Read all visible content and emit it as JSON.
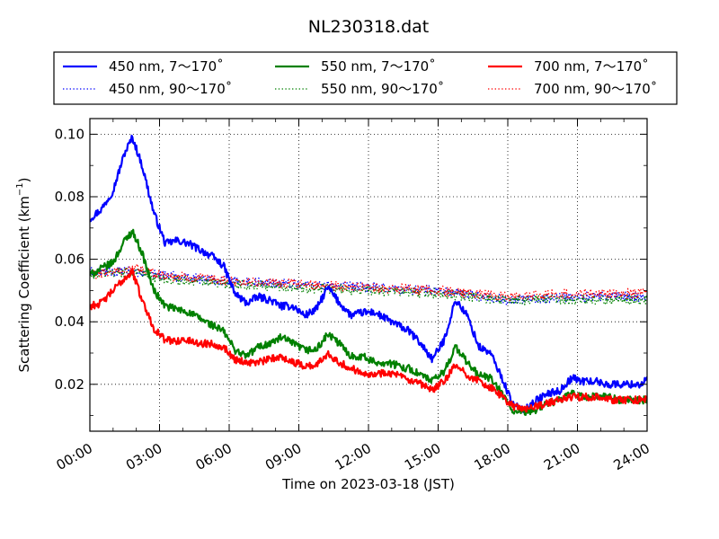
{
  "chart_data": {
    "type": "line",
    "title": "NL230318.dat",
    "xlabel": "Time on 2023-03-18 (JST)",
    "ylabel_main": "Scattering Coefficient (km",
    "ylabel_sup": "−1",
    "ylabel_close": ")",
    "xlim": [
      "00:00",
      "24:00"
    ],
    "ylim": [
      0.005,
      0.105
    ],
    "x_ticks": [
      "00:00",
      "03:00",
      "06:00",
      "09:00",
      "12:00",
      "15:00",
      "18:00",
      "21:00",
      "24:00"
    ],
    "y_ticks": [
      "0.02",
      "0.04",
      "0.06",
      "0.08",
      "0.10"
    ],
    "grid": true,
    "legend_position": "above plot, three columns",
    "series": [
      {
        "name": "450 nm, 7～170˚",
        "color": "#0000ff",
        "style": "solid",
        "x": [
          "00:00",
          "00:30",
          "01:00",
          "01:30",
          "01:50",
          "02:15",
          "02:45",
          "03:15",
          "03:45",
          "04:15",
          "04:45",
          "05:15",
          "05:45",
          "06:15",
          "06:45",
          "07:15",
          "07:45",
          "08:15",
          "08:45",
          "09:15",
          "09:45",
          "10:15",
          "10:45",
          "11:15",
          "11:45",
          "12:15",
          "12:45",
          "13:15",
          "13:45",
          "14:15",
          "14:45",
          "15:15",
          "15:45",
          "16:15",
          "16:45",
          "17:15",
          "17:45",
          "18:15",
          "18:45",
          "19:15",
          "19:45",
          "20:15",
          "20:45",
          "21:15",
          "21:45",
          "22:15",
          "22:45",
          "23:15",
          "23:45",
          "24:00"
        ],
        "y": [
          0.073,
          0.076,
          0.082,
          0.094,
          0.099,
          0.09,
          0.075,
          0.065,
          0.066,
          0.065,
          0.063,
          0.061,
          0.058,
          0.049,
          0.046,
          0.048,
          0.047,
          0.045,
          0.045,
          0.042,
          0.044,
          0.051,
          0.046,
          0.042,
          0.043,
          0.043,
          0.041,
          0.039,
          0.037,
          0.033,
          0.028,
          0.034,
          0.047,
          0.042,
          0.032,
          0.03,
          0.022,
          0.013,
          0.012,
          0.015,
          0.017,
          0.018,
          0.022,
          0.021,
          0.021,
          0.02,
          0.02,
          0.02,
          0.02,
          0.022
        ]
      },
      {
        "name": "450 nm, 90～170˚",
        "color": "#0000ff",
        "style": "dotted",
        "x": [
          "00:00",
          "01:00",
          "02:00",
          "03:00",
          "06:00",
          "09:00",
          "12:00",
          "15:00",
          "18:00",
          "21:00",
          "24:00"
        ],
        "y": [
          0.056,
          0.056,
          0.056,
          0.055,
          0.053,
          0.052,
          0.051,
          0.05,
          0.047,
          0.048,
          0.048
        ]
      },
      {
        "name": "550 nm, 7～170˚",
        "color": "#008000",
        "style": "solid",
        "x": [
          "00:00",
          "00:30",
          "01:00",
          "01:30",
          "01:50",
          "02:15",
          "02:45",
          "03:15",
          "03:45",
          "04:15",
          "04:45",
          "05:15",
          "05:45",
          "06:15",
          "06:45",
          "07:15",
          "07:45",
          "08:15",
          "08:45",
          "09:15",
          "09:45",
          "10:15",
          "10:45",
          "11:15",
          "11:45",
          "12:15",
          "12:45",
          "13:15",
          "13:45",
          "14:15",
          "14:45",
          "15:15",
          "15:45",
          "16:15",
          "16:45",
          "17:15",
          "17:45",
          "18:15",
          "18:45",
          "19:15",
          "19:45",
          "20:15",
          "20:45",
          "21:15",
          "21:45",
          "22:15",
          "22:45",
          "23:15",
          "23:45",
          "24:00"
        ],
        "y": [
          0.055,
          0.057,
          0.059,
          0.066,
          0.069,
          0.062,
          0.05,
          0.045,
          0.044,
          0.043,
          0.041,
          0.039,
          0.037,
          0.031,
          0.029,
          0.032,
          0.033,
          0.035,
          0.033,
          0.031,
          0.031,
          0.036,
          0.033,
          0.029,
          0.029,
          0.027,
          0.027,
          0.026,
          0.025,
          0.023,
          0.021,
          0.024,
          0.032,
          0.027,
          0.023,
          0.022,
          0.017,
          0.011,
          0.011,
          0.012,
          0.014,
          0.015,
          0.017,
          0.016,
          0.016,
          0.016,
          0.015,
          0.015,
          0.015,
          0.015
        ]
      },
      {
        "name": "550 nm, 90～170˚",
        "color": "#008000",
        "style": "dotted",
        "x": [
          "00:00",
          "01:00",
          "02:00",
          "03:00",
          "06:00",
          "09:00",
          "12:00",
          "15:00",
          "18:00",
          "21:00",
          "24:00"
        ],
        "y": [
          0.055,
          0.056,
          0.056,
          0.054,
          0.052,
          0.051,
          0.05,
          0.049,
          0.047,
          0.047,
          0.047
        ]
      },
      {
        "name": "700 nm, 7～170˚",
        "color": "#ff0000",
        "style": "solid",
        "x": [
          "00:00",
          "00:30",
          "01:00",
          "01:30",
          "01:50",
          "02:15",
          "02:45",
          "03:15",
          "03:45",
          "04:15",
          "04:45",
          "05:15",
          "05:45",
          "06:15",
          "06:45",
          "07:15",
          "07:45",
          "08:15",
          "08:45",
          "09:15",
          "09:45",
          "10:15",
          "10:45",
          "11:15",
          "11:45",
          "12:15",
          "12:45",
          "13:15",
          "13:45",
          "14:15",
          "14:45",
          "15:15",
          "15:45",
          "16:15",
          "16:45",
          "17:15",
          "17:45",
          "18:15",
          "18:45",
          "19:15",
          "19:45",
          "20:15",
          "20:45",
          "21:15",
          "21:45",
          "22:15",
          "22:45",
          "23:15",
          "23:45",
          "24:00"
        ],
        "y": [
          0.045,
          0.046,
          0.05,
          0.054,
          0.056,
          0.047,
          0.038,
          0.034,
          0.034,
          0.034,
          0.033,
          0.033,
          0.032,
          0.028,
          0.027,
          0.027,
          0.028,
          0.029,
          0.027,
          0.026,
          0.026,
          0.03,
          0.027,
          0.025,
          0.024,
          0.023,
          0.024,
          0.023,
          0.021,
          0.02,
          0.018,
          0.021,
          0.026,
          0.023,
          0.021,
          0.019,
          0.016,
          0.013,
          0.012,
          0.013,
          0.014,
          0.015,
          0.016,
          0.016,
          0.016,
          0.015,
          0.015,
          0.015,
          0.015,
          0.015
        ]
      },
      {
        "name": "700 nm, 90～170˚",
        "color": "#ff0000",
        "style": "dotted",
        "x": [
          "00:00",
          "01:00",
          "02:00",
          "03:00",
          "06:00",
          "09:00",
          "12:00",
          "15:00",
          "18:00",
          "21:00",
          "24:00"
        ],
        "y": [
          0.055,
          0.056,
          0.057,
          0.055,
          0.053,
          0.052,
          0.051,
          0.05,
          0.048,
          0.049,
          0.049
        ]
      }
    ]
  }
}
